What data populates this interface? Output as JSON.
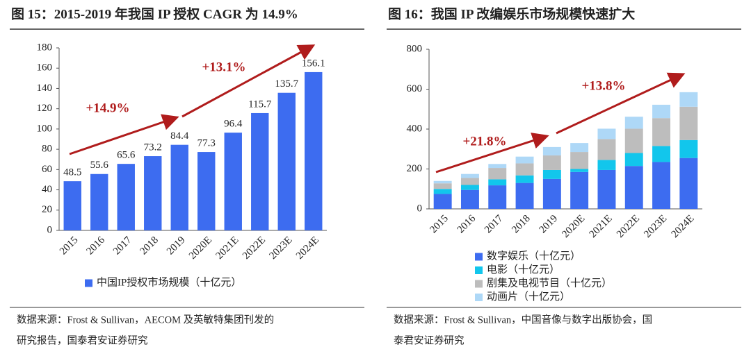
{
  "chart_data": [
    {
      "type": "bar",
      "title": "图 15：2015-2019 年我国 IP 授权 CAGR 为 14.9%",
      "categories": [
        "2015",
        "2016",
        "2017",
        "2018",
        "2019",
        "2020E",
        "2021E",
        "2022E",
        "2023E",
        "2024E"
      ],
      "series": [
        {
          "name": "中国IP授权市场规模（十亿元）",
          "color": "#3d6cf0",
          "values": [
            48.5,
            55.6,
            65.6,
            73.2,
            84.4,
            77.3,
            96.4,
            115.7,
            135.7,
            156.1
          ]
        }
      ],
      "ylim": [
        0,
        180
      ],
      "yticks": [
        0,
        20,
        40,
        60,
        80,
        100,
        120,
        140,
        160,
        180
      ],
      "annotations": [
        "+14.9%",
        "+13.1%"
      ],
      "source": [
        "数据来源：Frost & Sullivan，AECOM 及英敏特集团刊发的",
        "研究报告，国泰君安证券研究"
      ]
    },
    {
      "type": "stacked",
      "title": "图 16：我国 IP 改编娱乐市场规模快速扩大",
      "categories": [
        "2015",
        "2016",
        "2017",
        "2018",
        "2019",
        "2020E",
        "2021E",
        "2022E",
        "2023E",
        "2024E"
      ],
      "series": [
        {
          "name": "数字娱乐（十亿元）",
          "color": "#3d6cf0",
          "values": [
            75,
            95,
            118,
            130,
            150,
            185,
            195,
            215,
            235,
            255
          ]
        },
        {
          "name": "电影（十亿元）",
          "color": "#12c6ec",
          "values": [
            25,
            25,
            30,
            38,
            45,
            15,
            50,
            65,
            80,
            90
          ]
        },
        {
          "name": "剧集及电视节目（十亿元）",
          "color": "#bdbdbd",
          "values": [
            28,
            35,
            57,
            60,
            73,
            85,
            105,
            122,
            140,
            167
          ]
        },
        {
          "name": "动画片（十亿元）",
          "color": "#aed8f7",
          "values": [
            12,
            20,
            20,
            34,
            42,
            45,
            52,
            60,
            67,
            73
          ]
        }
      ],
      "ylim": [
        0,
        800
      ],
      "yticks": [
        0,
        200,
        400,
        600,
        800
      ],
      "annotations": [
        "+21.8%",
        "+13.8%"
      ],
      "source": [
        "数据来源：Frost & Sullivan，中国音像与数字出版协会，国",
        "泰君安证券研究"
      ]
    }
  ]
}
